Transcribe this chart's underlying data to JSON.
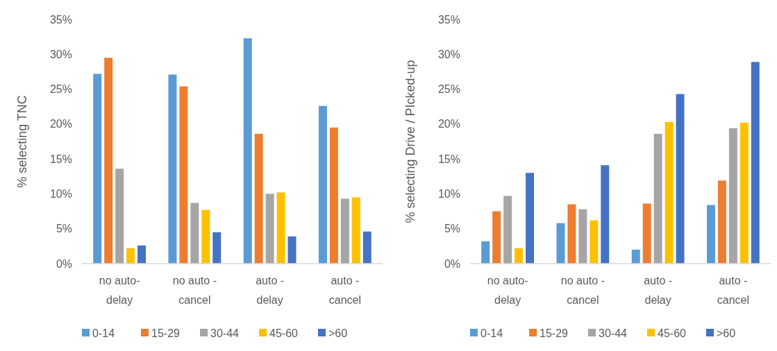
{
  "chart_data": [
    {
      "type": "bar",
      "ylabel": "% selecting TNC",
      "categories": [
        "no auto-delay",
        "no auto - cancel",
        "auto - delay",
        "auto - cancel"
      ],
      "series": [
        {
          "name": "0-14",
          "color": "#5b9bd5",
          "values": [
            27.2,
            27.1,
            32.3,
            22.6
          ]
        },
        {
          "name": "15-29",
          "color": "#ed7d31",
          "values": [
            29.5,
            25.4,
            18.6,
            19.5
          ]
        },
        {
          "name": "30-44",
          "color": "#a5a5a5",
          "values": [
            13.6,
            8.7,
            10.0,
            9.3
          ]
        },
        {
          "name": "45-60",
          "color": "#ffc000",
          "values": [
            2.2,
            7.7,
            10.2,
            9.5
          ]
        },
        {
          "name": ">60",
          "color": "#4472c4",
          "values": [
            2.6,
            4.5,
            3.9,
            4.6
          ]
        }
      ],
      "ylim": [
        0,
        35
      ],
      "yticks": [
        {
          "value": 0,
          "label": "0%"
        },
        {
          "value": 5,
          "label": "5%"
        },
        {
          "value": 10,
          "label": "10%"
        },
        {
          "value": 15,
          "label": "15%"
        },
        {
          "value": 20,
          "label": "20%"
        },
        {
          "value": 25,
          "label": "25%"
        },
        {
          "value": 30,
          "label": "30%"
        },
        {
          "value": 35,
          "label": "35%"
        }
      ],
      "grid": false,
      "legend": "bottom"
    },
    {
      "type": "bar",
      "ylabel": "% selecting Drive / PIcked-up",
      "categories": [
        "no auto-delay",
        "no auto - cancel",
        "auto - delay",
        "auto - cancel"
      ],
      "series": [
        {
          "name": "0-14",
          "color": "#5b9bd5",
          "values": [
            3.2,
            5.8,
            2.0,
            8.4
          ]
        },
        {
          "name": "15-29",
          "color": "#ed7d31",
          "values": [
            7.5,
            8.5,
            8.6,
            11.9
          ]
        },
        {
          "name": "30-44",
          "color": "#a5a5a5",
          "values": [
            9.7,
            7.8,
            18.6,
            19.4
          ]
        },
        {
          "name": "45-60",
          "color": "#ffc000",
          "values": [
            2.2,
            6.2,
            20.3,
            20.2
          ]
        },
        {
          "name": ">60",
          "color": "#4472c4",
          "values": [
            13.0,
            14.1,
            24.3,
            28.9
          ]
        }
      ],
      "ylim": [
        0,
        35
      ],
      "yticks": [
        {
          "value": 0,
          "label": "0%"
        },
        {
          "value": 5,
          "label": "5%"
        },
        {
          "value": 10,
          "label": "10%"
        },
        {
          "value": 15,
          "label": "15%"
        },
        {
          "value": 20,
          "label": "20%"
        },
        {
          "value": 25,
          "label": "25%"
        },
        {
          "value": 30,
          "label": "30%"
        },
        {
          "value": 35,
          "label": "35%"
        }
      ],
      "grid": false,
      "legend": "bottom"
    }
  ]
}
